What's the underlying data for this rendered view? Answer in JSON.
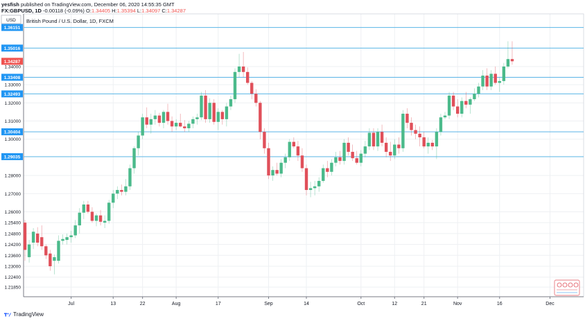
{
  "header": {
    "author": "yesfish",
    "published": "published on TradingView.com, December 06, 2020 14:55:35 GMT",
    "symbol_line": "FX:GBPUSD, 1D",
    "change": "-0.00118 (-0.09%)",
    "o_label": "O:",
    "o_value": "1.34405",
    "h_label": "H:",
    "h_value": "1.35394",
    "l_label": "L:",
    "l_value": "1.34097",
    "c_label": "C:",
    "c_value": "1.34287"
  },
  "footer": {
    "brand": "TradingView"
  },
  "colors": {
    "up": "#4bba8b",
    "down": "#e0505a",
    "level_line": "#5ab4e6",
    "level_label_bg": "#2196f3",
    "last_price_bg": "#ef5350",
    "grid": "#eef0f3",
    "axis_text": "#131722"
  },
  "chart_data": {
    "type": "candlestick",
    "title": "British Pound / U.S. Dollar, 1D, FXCM",
    "currency": "USD",
    "ylim": [
      1.2132,
      1.369
    ],
    "y_ticks": [
      "1.34000",
      "1.33000",
      "1.32000",
      "1.31000",
      "1.30000",
      "1.28000",
      "1.27000",
      "1.26000",
      "1.25400",
      "1.24800",
      "1.24200",
      "1.23600",
      "1.23000",
      "1.22400",
      "1.21850"
    ],
    "levels": [
      "1.36151",
      "1.35016",
      "1.33408",
      "1.32493",
      "1.30404",
      "1.29035"
    ],
    "last_price": "1.34287",
    "x_labels": [
      {
        "label": "Jul",
        "i": 11
      },
      {
        "label": "13",
        "i": 21
      },
      {
        "label": "22",
        "i": 28
      },
      {
        "label": "Aug",
        "i": 36
      },
      {
        "label": "17",
        "i": 46
      },
      {
        "label": "Sep",
        "i": 58
      },
      {
        "label": "14",
        "i": 67
      },
      {
        "label": "Oct",
        "i": 80
      },
      {
        "label": "12",
        "i": 88
      },
      {
        "label": "21",
        "i": 95
      },
      {
        "label": "Nov",
        "i": 103
      },
      {
        "label": "16",
        "i": 113
      },
      {
        "label": "Dec",
        "i": 125
      }
    ],
    "candles": [
      [
        1.254,
        1.2555,
        1.233,
        1.239
      ],
      [
        1.235,
        1.2445,
        1.232,
        1.242
      ],
      [
        1.243,
        1.251,
        1.2395,
        1.249
      ],
      [
        1.248,
        1.2515,
        1.241,
        1.243
      ],
      [
        1.246,
        1.2525,
        1.239,
        1.241
      ],
      [
        1.241,
        1.242,
        1.234,
        1.236
      ],
      [
        1.237,
        1.239,
        1.2275,
        1.23
      ],
      [
        1.233,
        1.2365,
        1.2255,
        1.235
      ],
      [
        1.233,
        1.247,
        1.2315,
        1.244
      ],
      [
        1.244,
        1.2475,
        1.242,
        1.245
      ],
      [
        1.2445,
        1.248,
        1.242,
        1.246
      ],
      [
        1.246,
        1.2495,
        1.243,
        1.247
      ],
      [
        1.247,
        1.2555,
        1.2455,
        1.2525
      ],
      [
        1.2525,
        1.262,
        1.248,
        1.2595
      ],
      [
        1.2595,
        1.266,
        1.256,
        1.264
      ],
      [
        1.264,
        1.266,
        1.259,
        1.26
      ],
      [
        1.26,
        1.2625,
        1.254,
        1.255
      ],
      [
        1.255,
        1.259,
        1.252,
        1.258
      ],
      [
        1.258,
        1.261,
        1.2525,
        1.2545
      ],
      [
        1.254,
        1.258,
        1.251,
        1.255
      ],
      [
        1.255,
        1.2665,
        1.2535,
        1.265
      ],
      [
        1.265,
        1.272,
        1.262,
        1.27
      ],
      [
        1.27,
        1.274,
        1.267,
        1.272
      ],
      [
        1.272,
        1.275,
        1.269,
        1.271
      ],
      [
        1.271,
        1.278,
        1.269,
        1.274
      ],
      [
        1.274,
        1.286,
        1.272,
        1.284
      ],
      [
        1.284,
        1.296,
        1.281,
        1.295
      ],
      [
        1.295,
        1.304,
        1.291,
        1.302
      ],
      [
        1.302,
        1.314,
        1.3,
        1.312
      ],
      [
        1.312,
        1.3175,
        1.306,
        1.308
      ],
      [
        1.308,
        1.314,
        1.303,
        1.311
      ],
      [
        1.311,
        1.316,
        1.308,
        1.313
      ],
      [
        1.313,
        1.3145,
        1.307,
        1.309
      ],
      [
        1.309,
        1.316,
        1.306,
        1.315
      ],
      [
        1.315,
        1.3195,
        1.308,
        1.31
      ],
      [
        1.31,
        1.3125,
        1.304,
        1.307
      ],
      [
        1.307,
        1.311,
        1.305,
        1.309
      ],
      [
        1.309,
        1.314,
        1.3065,
        1.307
      ],
      [
        1.307,
        1.3105,
        1.304,
        1.306
      ],
      [
        1.306,
        1.31,
        1.304,
        1.3085
      ],
      [
        1.3085,
        1.3125,
        1.306,
        1.311
      ],
      [
        1.311,
        1.314,
        1.308,
        1.312
      ],
      [
        1.312,
        1.326,
        1.3105,
        1.324
      ],
      [
        1.324,
        1.327,
        1.309,
        1.311
      ],
      [
        1.311,
        1.3225,
        1.309,
        1.32
      ],
      [
        1.32,
        1.322,
        1.308,
        1.3095
      ],
      [
        1.3095,
        1.317,
        1.305,
        1.315
      ],
      [
        1.315,
        1.316,
        1.308,
        1.311
      ],
      [
        1.311,
        1.32,
        1.307,
        1.318
      ],
      [
        1.318,
        1.324,
        1.316,
        1.322
      ],
      [
        1.322,
        1.339,
        1.32,
        1.337
      ],
      [
        1.337,
        1.347,
        1.334,
        1.34
      ],
      [
        1.34,
        1.348,
        1.334,
        1.337
      ],
      [
        1.337,
        1.3395,
        1.33,
        1.331
      ],
      [
        1.331,
        1.332,
        1.322,
        1.325
      ],
      [
        1.325,
        1.3275,
        1.318,
        1.32
      ],
      [
        1.32,
        1.321,
        1.3,
        1.304
      ],
      [
        1.304,
        1.306,
        1.292,
        1.295
      ],
      [
        1.295,
        1.298,
        1.278,
        1.28
      ],
      [
        1.28,
        1.285,
        1.277,
        1.283
      ],
      [
        1.283,
        1.287,
        1.28,
        1.281
      ],
      [
        1.281,
        1.289,
        1.279,
        1.287
      ],
      [
        1.287,
        1.292,
        1.284,
        1.29
      ],
      [
        1.29,
        1.3,
        1.288,
        1.2985
      ],
      [
        1.2985,
        1.301,
        1.295,
        1.296
      ],
      [
        1.296,
        1.299,
        1.288,
        1.291
      ],
      [
        1.291,
        1.295,
        1.282,
        1.284
      ],
      [
        1.284,
        1.286,
        1.269,
        1.272
      ],
      [
        1.272,
        1.2765,
        1.268,
        1.273
      ],
      [
        1.273,
        1.277,
        1.269,
        1.274
      ],
      [
        1.274,
        1.279,
        1.271,
        1.277
      ],
      [
        1.277,
        1.286,
        1.276,
        1.284
      ],
      [
        1.284,
        1.288,
        1.279,
        1.282
      ],
      [
        1.282,
        1.289,
        1.28,
        1.287
      ],
      [
        1.287,
        1.293,
        1.285,
        1.29
      ],
      [
        1.29,
        1.2935,
        1.286,
        1.288
      ],
      [
        1.288,
        1.3,
        1.286,
        1.298
      ],
      [
        1.298,
        1.301,
        1.291,
        1.293
      ],
      [
        1.293,
        1.297,
        1.288,
        1.2895
      ],
      [
        1.2895,
        1.2935,
        1.286,
        1.287
      ],
      [
        1.287,
        1.294,
        1.285,
        1.292
      ],
      [
        1.292,
        1.299,
        1.29,
        1.296
      ],
      [
        1.296,
        1.306,
        1.294,
        1.3035
      ],
      [
        1.3035,
        1.306,
        1.294,
        1.296
      ],
      [
        1.296,
        1.306,
        1.2935,
        1.304
      ],
      [
        1.304,
        1.308,
        1.296,
        1.298
      ],
      [
        1.298,
        1.301,
        1.29,
        1.293
      ],
      [
        1.293,
        1.2985,
        1.288,
        1.291
      ],
      [
        1.291,
        1.3,
        1.289,
        1.297
      ],
      [
        1.297,
        1.301,
        1.292,
        1.295
      ],
      [
        1.295,
        1.316,
        1.293,
        1.314
      ],
      [
        1.314,
        1.317,
        1.306,
        1.309
      ],
      [
        1.309,
        1.312,
        1.302,
        1.305
      ],
      [
        1.305,
        1.308,
        1.3,
        1.303
      ],
      [
        1.303,
        1.307,
        1.296,
        1.301
      ],
      [
        1.301,
        1.304,
        1.295,
        1.296
      ],
      [
        1.296,
        1.301,
        1.292,
        1.298
      ],
      [
        1.298,
        1.2995,
        1.294,
        1.296
      ],
      [
        1.296,
        1.306,
        1.289,
        1.304
      ],
      [
        1.304,
        1.314,
        1.302,
        1.312
      ],
      [
        1.312,
        1.315,
        1.311,
        1.313
      ],
      [
        1.313,
        1.326,
        1.311,
        1.324
      ],
      [
        1.324,
        1.326,
        1.316,
        1.318
      ],
      [
        1.318,
        1.322,
        1.312,
        1.314
      ],
      [
        1.314,
        1.323,
        1.312,
        1.321
      ],
      [
        1.321,
        1.326,
        1.317,
        1.319
      ],
      [
        1.319,
        1.323,
        1.314,
        1.322
      ],
      [
        1.322,
        1.328,
        1.321,
        1.325
      ],
      [
        1.325,
        1.331,
        1.323,
        1.329
      ],
      [
        1.329,
        1.338,
        1.327,
        1.335
      ],
      [
        1.335,
        1.339,
        1.327,
        1.329
      ],
      [
        1.329,
        1.338,
        1.327,
        1.336
      ],
      [
        1.336,
        1.34,
        1.33,
        1.331
      ],
      [
        1.331,
        1.334,
        1.326,
        1.332
      ],
      [
        1.332,
        1.342,
        1.33,
        1.34
      ],
      [
        1.34,
        1.3539,
        1.339,
        1.3441
      ],
      [
        1.3441,
        1.3539,
        1.341,
        1.3429
      ]
    ]
  }
}
